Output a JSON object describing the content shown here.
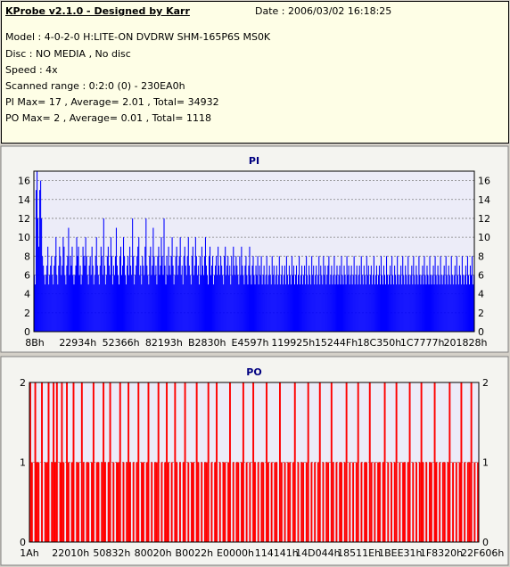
{
  "header": {
    "title": "KProbe v2.1.0 - Designed by Karr",
    "date": "Date : 2006/03/02 16:18:25",
    "lines": [
      "Model : 4-0-2-0 H:LITE-ON DVDRW SHM-165P6S MS0K",
      "Disc : NO MEDIA , No disc",
      "Speed : 4x",
      "Scanned range : 0:2:0 (0) - 230EA0h",
      "PI Max= 17 , Average= 2.01 , Total= 34932",
      "PO Max= 2 , Average= 0.01 , Total= 1118"
    ]
  },
  "colors": {
    "pi_bar": "#0000ff",
    "po_bar": "#ff0000",
    "title": "#000080",
    "plot_bg": "#ececf8"
  },
  "chart_data": [
    {
      "type": "bar",
      "title": "PI",
      "ylim": [
        0,
        17
      ],
      "yticks": [
        0,
        2,
        4,
        6,
        8,
        10,
        12,
        14,
        16
      ],
      "xticks": [
        "8Bh",
        "22934h",
        "52366h",
        "82193h",
        "B2830h",
        "E4597h",
        "119925h",
        "15244Fh",
        "18C350h",
        "1C7777h",
        "201828h"
      ],
      "grid": true,
      "series": [
        {
          "name": "PI",
          "values": [
            6,
            5,
            15,
            17,
            12,
            9,
            15,
            16,
            12,
            8,
            7,
            6,
            5,
            6,
            7,
            9,
            5,
            6,
            7,
            8,
            6,
            5,
            7,
            8,
            10,
            6,
            5,
            7,
            9,
            8,
            6,
            7,
            10,
            9,
            6,
            5,
            7,
            8,
            11,
            6,
            8,
            7,
            9,
            6,
            5,
            6,
            7,
            10,
            8,
            9,
            6,
            7,
            5,
            6,
            9,
            8,
            7,
            10,
            8,
            6,
            5,
            7,
            8,
            6,
            9,
            7,
            5,
            6,
            8,
            10,
            7,
            6,
            5,
            7,
            9,
            8,
            6,
            12,
            7,
            5,
            6,
            8,
            9,
            7,
            6,
            10,
            8,
            5,
            7,
            6,
            8,
            11,
            7,
            6,
            5,
            8,
            9,
            6,
            7,
            10,
            8,
            6,
            5,
            7,
            8,
            6,
            9,
            7,
            6,
            12,
            8,
            5,
            6,
            7,
            8,
            9,
            10,
            6,
            7,
            5,
            8,
            7,
            6,
            9,
            12,
            7,
            6,
            5,
            8,
            9,
            6,
            7,
            11,
            8,
            6,
            7,
            5,
            8,
            9,
            6,
            7,
            10,
            8,
            6,
            12,
            7,
            5,
            8,
            6,
            9,
            7,
            6,
            8,
            10,
            7,
            5,
            6,
            8,
            9,
            6,
            7,
            8,
            10,
            6,
            7,
            5,
            8,
            9,
            7,
            6,
            8,
            10,
            7,
            6,
            5,
            8,
            9,
            6,
            7,
            10,
            8,
            6,
            7,
            5,
            8,
            6,
            9,
            7,
            6,
            8,
            10,
            7,
            6,
            5,
            8,
            9,
            6,
            7,
            8,
            5,
            6,
            7,
            8,
            6,
            9,
            7,
            6,
            8,
            7,
            6,
            5,
            8,
            9,
            6,
            7,
            8,
            6,
            7,
            5,
            8,
            6,
            9,
            7,
            6,
            8,
            7,
            6,
            5,
            8,
            6,
            9,
            7,
            6,
            5,
            7,
            8,
            6,
            5,
            7,
            9,
            6,
            5,
            7,
            8,
            6,
            5,
            7,
            6,
            8,
            5,
            7,
            6,
            8,
            5,
            6,
            7,
            5,
            6,
            8,
            5,
            6,
            7,
            6,
            5,
            8,
            6,
            7,
            5,
            6,
            7,
            5,
            6,
            8,
            5,
            6,
            7,
            5,
            6,
            7,
            5,
            8,
            6,
            5,
            7,
            6,
            5,
            8,
            6,
            7,
            5,
            6,
            7,
            5,
            6,
            8,
            5,
            6,
            7,
            5,
            6,
            7,
            5,
            8,
            6,
            5,
            7,
            6,
            5,
            8,
            6,
            7,
            5,
            6,
            7,
            5,
            6,
            8,
            5,
            7,
            6,
            5,
            8,
            6,
            7,
            5,
            6,
            7,
            8,
            5,
            6,
            7,
            5,
            6,
            8,
            5,
            6,
            7,
            5,
            6,
            7,
            5,
            8,
            6,
            5,
            7,
            6,
            5,
            8,
            6,
            7,
            5,
            6,
            7,
            5,
            6,
            8,
            5,
            6,
            7,
            5,
            6,
            7,
            5,
            8,
            6,
            5,
            7,
            6,
            5,
            8,
            6,
            7,
            5,
            6,
            7,
            5,
            6,
            8,
            5,
            6,
            7,
            5,
            6,
            7,
            5,
            8,
            6,
            5,
            7,
            6,
            5,
            8,
            6,
            5,
            6,
            7,
            5,
            8,
            6,
            5,
            7,
            6,
            5,
            8,
            6,
            5,
            6,
            7,
            5,
            8,
            6,
            5,
            7,
            6,
            5,
            8,
            6,
            5,
            6,
            7,
            5,
            8,
            6,
            5,
            7,
            6,
            5,
            8,
            6,
            5,
            6,
            7,
            5,
            8,
            6,
            5,
            7,
            6,
            5,
            8,
            6,
            5,
            6,
            7,
            5,
            8,
            6,
            5,
            7,
            6,
            5,
            8,
            6,
            5,
            6,
            7,
            5,
            8,
            6,
            5,
            7,
            6,
            5,
            8,
            6,
            5,
            6,
            7,
            5,
            8,
            6,
            5,
            7,
            6,
            5,
            8,
            6,
            5,
            6,
            7,
            5,
            8,
            6,
            5,
            7,
            6,
            8,
            5,
            6
          ]
        }
      ]
    },
    {
      "type": "bar",
      "title": "PO",
      "ylim": [
        0,
        2
      ],
      "yticks": [
        0,
        1,
        2
      ],
      "xticks": [
        "1Ah",
        "22010h",
        "50832h",
        "80020h",
        "B0022h",
        "E0000h",
        "114141h",
        "14D044h",
        "18511Eh",
        "1BEE31h",
        "1F8320h",
        "22F606h"
      ],
      "grid": true,
      "series": [
        {
          "name": "PO",
          "values": [
            2,
            1,
            0,
            2,
            1,
            1,
            0,
            2,
            0,
            1,
            1,
            2,
            0,
            1,
            2,
            1,
            2,
            0,
            1,
            2,
            1,
            0,
            2,
            1,
            0,
            1,
            2,
            0,
            1,
            1,
            0,
            2,
            1,
            0,
            1,
            1,
            0,
            1,
            2,
            0,
            1,
            1,
            0,
            1,
            2,
            1,
            0,
            1,
            2,
            0,
            1,
            0,
            1,
            1,
            2,
            0,
            1,
            0,
            1,
            2,
            1,
            0,
            1,
            0,
            1,
            2,
            0,
            1,
            1,
            0,
            1,
            2,
            0,
            1,
            0,
            1,
            1,
            2,
            0,
            1,
            0,
            1,
            2,
            1,
            0,
            1,
            0,
            2,
            1,
            0,
            1,
            0,
            1,
            2,
            0,
            1,
            0,
            1,
            1,
            0,
            2,
            1,
            0,
            1,
            0,
            1,
            1,
            2,
            0,
            1,
            0,
            1,
            2,
            0,
            1,
            0,
            1,
            1,
            0,
            1,
            2,
            0,
            1,
            0,
            1,
            1,
            0,
            1,
            2,
            0,
            1,
            0,
            1,
            0,
            2,
            1,
            0,
            1,
            0,
            1,
            1,
            0,
            2,
            1,
            0,
            1,
            0,
            1,
            1,
            0,
            2,
            1,
            0,
            1,
            0,
            1,
            1,
            0,
            1,
            2,
            0,
            1,
            0,
            1,
            1,
            0,
            1,
            2,
            0,
            1,
            0,
            1,
            0,
            1,
            2,
            0,
            1,
            0,
            1,
            1,
            0,
            2,
            1,
            0,
            1,
            0,
            1,
            1,
            0,
            1,
            2,
            0,
            1,
            0,
            1,
            0,
            1,
            2,
            0,
            1,
            0,
            1,
            1,
            0,
            2,
            1,
            0,
            1,
            0,
            1,
            1,
            0,
            1,
            2,
            0,
            1,
            0,
            1,
            0,
            1,
            2,
            0,
            1,
            0,
            1,
            1,
            0,
            1,
            2,
            0,
            1,
            0,
            1,
            0,
            1,
            2,
            1,
            0,
            1,
            0,
            1,
            1,
            0,
            2,
            1,
            0,
            1,
            0,
            1,
            1,
            0,
            1,
            2,
            0,
            1,
            0,
            1,
            0,
            1,
            2,
            0,
            1,
            0,
            1,
            1,
            2,
            0,
            1,
            0,
            1
          ]
        }
      ]
    }
  ]
}
